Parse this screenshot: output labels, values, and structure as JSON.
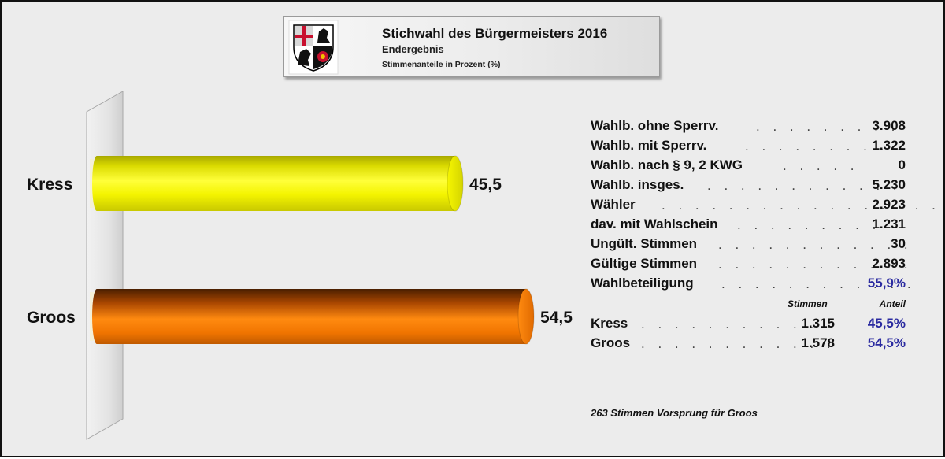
{
  "header": {
    "title": "Stichwahl des Bürgermeisters 2016",
    "subtitle": "Endergebnis",
    "note": "Stimmenanteile in Prozent (%)",
    "crest_icon": "coat-of-arms-icon"
  },
  "chart_data": {
    "type": "bar",
    "orientation": "horizontal",
    "categories": [
      "Kress",
      "Groos"
    ],
    "values": [
      45.5,
      54.5
    ],
    "value_labels": [
      "45,5",
      "54,5"
    ],
    "colors": [
      "#f2f200",
      "#f07800"
    ],
    "xlim": [
      0,
      100
    ],
    "title": "",
    "xlabel": "",
    "ylabel": "",
    "grid": false,
    "legend": "none"
  },
  "stats": {
    "rows": [
      {
        "label": "Wahlb. ohne Sperrv.",
        "dots": ". . . . . . . . .",
        "value": "3.908"
      },
      {
        "label": "Wahlb. mit Sperrv.",
        "dots": ". . . . . . . . . .",
        "value": "1.322"
      },
      {
        "label": "Wahlb. nach § 9, 2 KWG",
        "dots": ". . . . .",
        "value": "0"
      },
      {
        "label": "Wahlb. insges.",
        "dots": ". . . . . . . . . . . .",
        "value": "5.230"
      },
      {
        "label": "Wähler",
        "dots": ". . . . . . . . . . . . . . . . .",
        "value": "2.923"
      },
      {
        "label": "dav. mit Wahlschein",
        "dots": ". . . . . . . . .",
        "value": "1.231"
      },
      {
        "label": "Ungült. Stimmen",
        "dots": ". . . . . . . . . . . .",
        "value": "30"
      },
      {
        "label": "Gültige Stimmen",
        "dots": ". . . . . . . . . . . .",
        "value": "2.893"
      },
      {
        "label": "Wahlbeteiligung",
        "dots": ". . . . . . . . . . . .",
        "value": "55,9%"
      }
    ],
    "col_stimmen": "Stimmen",
    "col_anteil": "Anteil",
    "candidates": [
      {
        "name": "Kress",
        "dots": ". . . . . . . . . . . .",
        "stimmen": "1.315",
        "anteil": "45,5%"
      },
      {
        "name": "Groos",
        "dots": ". . . . . . . . . . . .",
        "stimmen": "1.578",
        "anteil": "54,5%"
      }
    ],
    "highlight_color": "#2b2ba0"
  },
  "footer": {
    "text": "263 Stimmen Vorsprung für Groos"
  }
}
